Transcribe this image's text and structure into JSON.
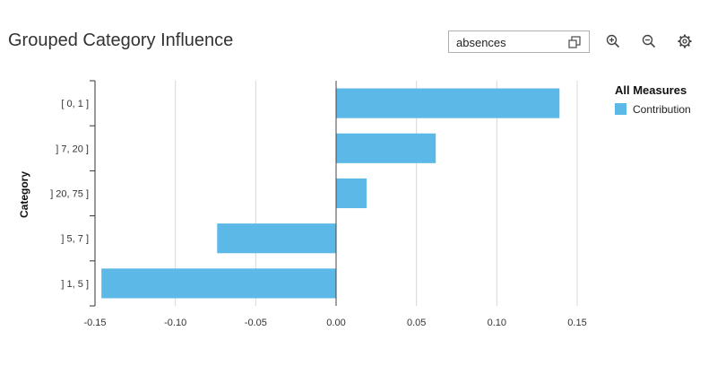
{
  "header": {
    "title": "Grouped Category Influence",
    "selector_value": "absences"
  },
  "toolbar": {
    "icons": [
      "zoom-in-icon",
      "zoom-out-icon",
      "settings-icon"
    ]
  },
  "colors": {
    "bar": "#5cb8e6",
    "axis": "#333333",
    "grid": "#d8d8d8"
  },
  "chart_data": {
    "type": "bar",
    "orientation": "horizontal",
    "ylabel": "Category",
    "xlabel": "",
    "categories": [
      "[ 0, 1 ]",
      "] 7, 20 ]",
      "] 20, 75 ]",
      "] 5, 7 ]",
      "] 1, 5 ]"
    ],
    "series": [
      {
        "name": "Contribution",
        "values": [
          0.139,
          0.062,
          0.019,
          -0.074,
          -0.146
        ]
      }
    ],
    "xlim": [
      -0.15,
      0.15
    ],
    "xticks": [
      -0.15,
      -0.1,
      -0.05,
      0.0,
      0.05,
      0.1,
      0.15
    ],
    "xtick_labels": [
      "-0.15",
      "-0.10",
      "-0.05",
      "0.00",
      "0.05",
      "0.10",
      "0.15"
    ],
    "grid": true,
    "legend": {
      "title": "All Measures",
      "entries": [
        "Contribution"
      ],
      "position": "right"
    }
  }
}
